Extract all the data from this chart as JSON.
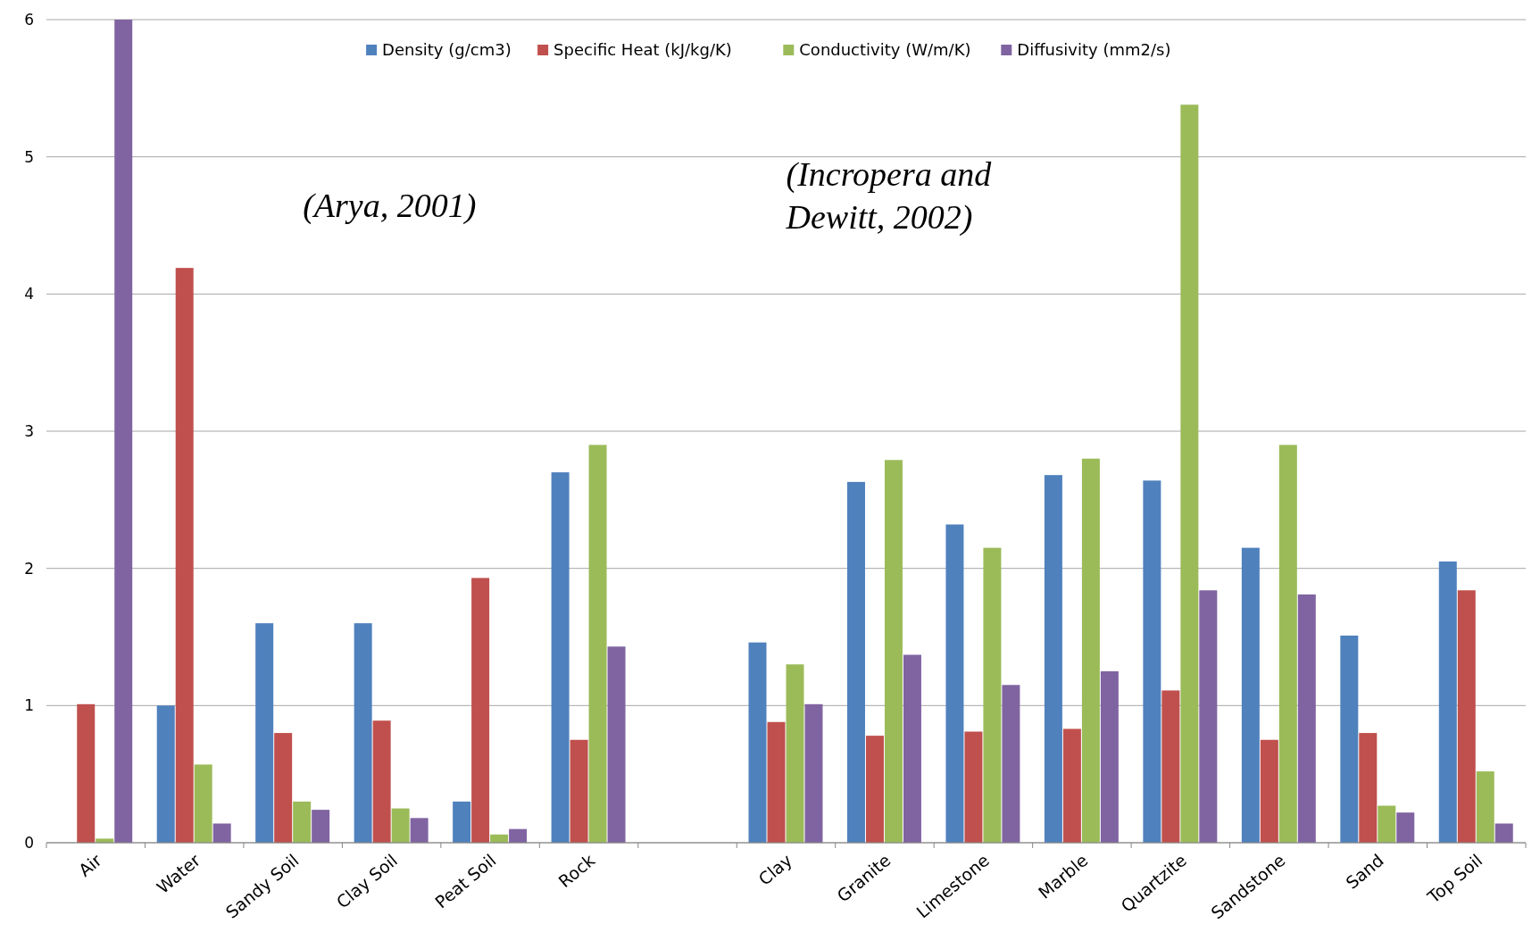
{
  "chart_data": {
    "type": "bar",
    "categories": [
      "Air",
      "Water",
      "Sandy Soil",
      "Clay Soil",
      "Peat Soil",
      "Rock",
      null,
      "Clay",
      "Granite",
      "Limestone",
      "Marble",
      "Quartzite",
      "Sandstone",
      "Sand",
      "Top Soil"
    ],
    "series": [
      {
        "name": "Density (g/cm3)",
        "color": "#4f81bd",
        "values": [
          0,
          1.0,
          1.6,
          1.6,
          0.3,
          2.7,
          null,
          1.46,
          2.63,
          2.32,
          2.68,
          2.64,
          2.15,
          1.51,
          2.05
        ]
      },
      {
        "name": "Specific Heat (kJ/kg/K)",
        "color": "#c0504d",
        "values": [
          1.01,
          4.19,
          0.8,
          0.89,
          1.93,
          0.75,
          null,
          0.88,
          0.78,
          0.81,
          0.83,
          1.11,
          0.75,
          0.8,
          1.84
        ]
      },
      {
        "name": "Conductivity (W/m/K)",
        "color": "#9bbb59",
        "values": [
          0.03,
          0.57,
          0.3,
          0.25,
          0.06,
          2.9,
          null,
          1.3,
          2.79,
          2.15,
          2.8,
          5.38,
          2.9,
          0.27,
          0.52
        ]
      },
      {
        "name": "Diffusivity (mm2/s)",
        "color": "#8064a2",
        "values": [
          6,
          0.14,
          0.24,
          0.18,
          0.1,
          1.43,
          null,
          1.01,
          1.37,
          1.15,
          1.25,
          1.84,
          1.81,
          0.22,
          0.14
        ]
      }
    ],
    "ylim": [
      0,
      6
    ],
    "yticks": [
      0,
      1,
      2,
      3,
      4,
      5,
      6
    ],
    "grid": "y",
    "legend": "top",
    "annotations": [
      "(Arya, 2001)",
      "(Incropera and Dewitt, 2002)"
    ]
  }
}
